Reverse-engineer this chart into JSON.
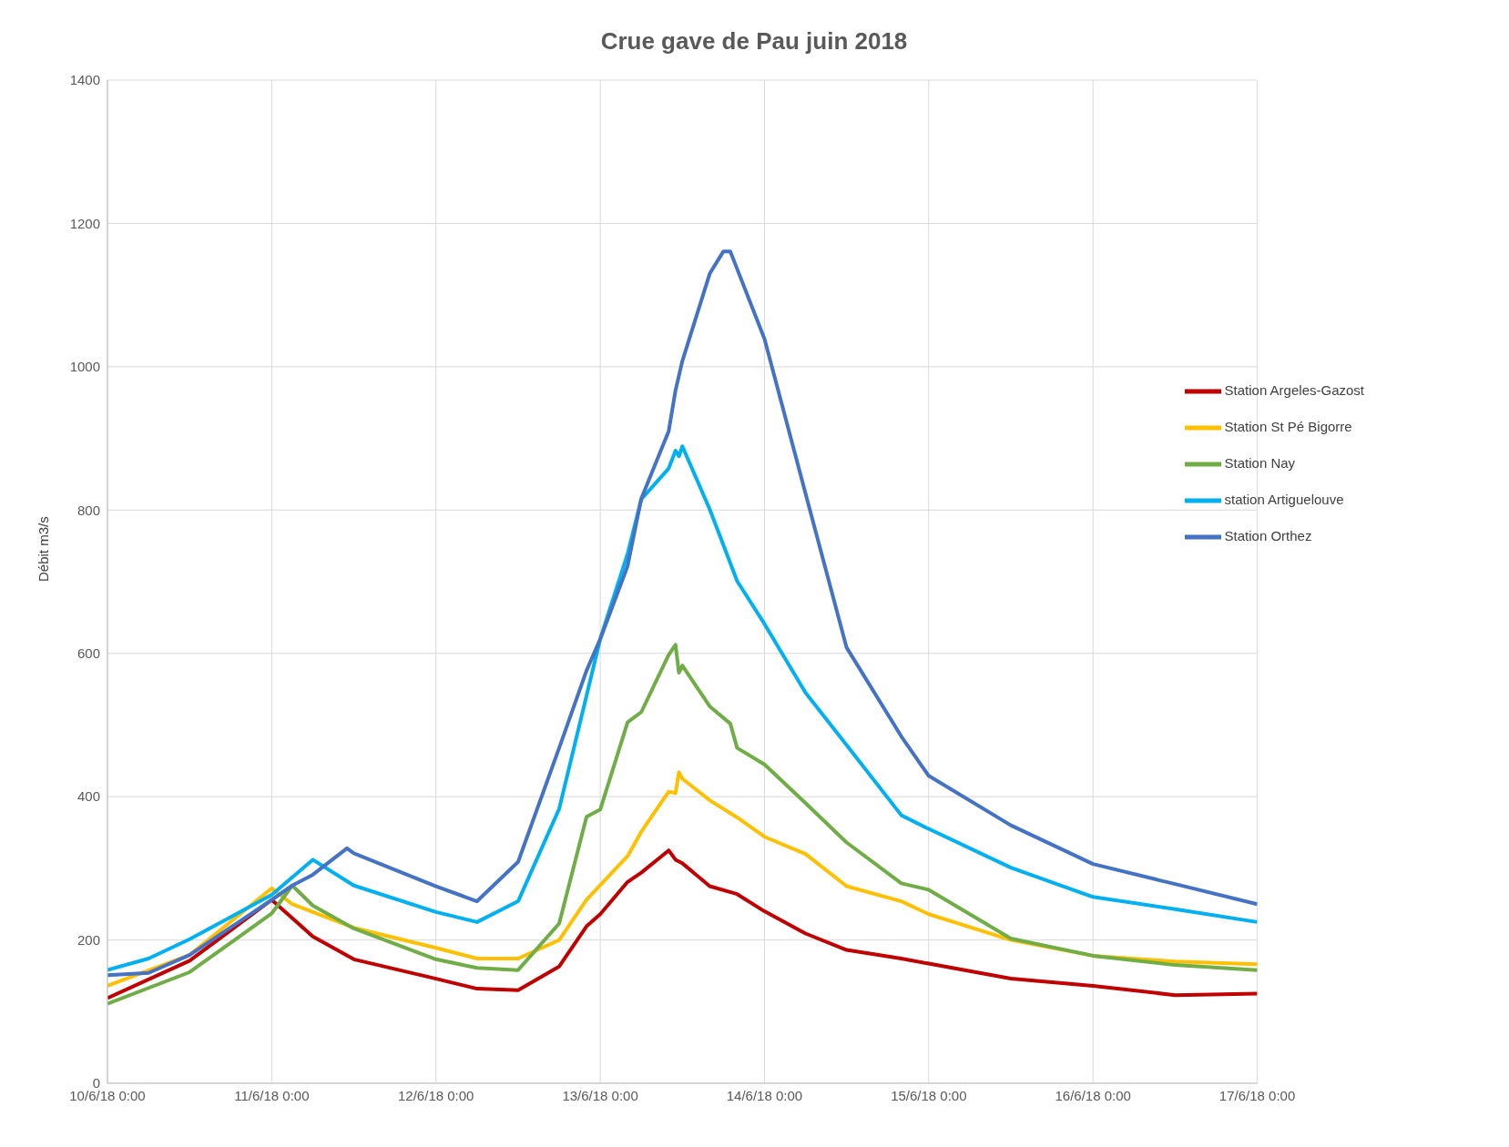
{
  "chart_data": {
    "type": "line",
    "title": "Crue gave de Pau juin 2018",
    "ylabel": "Débit m3/s",
    "xlim": [
      "2018-06-10T00:00",
      "2018-06-17T00:00"
    ],
    "xticks": [
      {
        "value": "2018-06-10T00:00",
        "label": "10/6/18 0:00"
      },
      {
        "value": "2018-06-11T00:00",
        "label": "11/6/18 0:00"
      },
      {
        "value": "2018-06-12T00:00",
        "label": "12/6/18 0:00"
      },
      {
        "value": "2018-06-13T00:00",
        "label": "13/6/18 0:00"
      },
      {
        "value": "2018-06-14T00:00",
        "label": "14/6/18 0:00"
      },
      {
        "value": "2018-06-15T00:00",
        "label": "15/6/18 0:00"
      },
      {
        "value": "2018-06-16T00:00",
        "label": "16/6/18 0:00"
      },
      {
        "value": "2018-06-17T00:00",
        "label": "17/6/18 0:00"
      }
    ],
    "ylim": [
      0,
      1400
    ],
    "yticks": [
      0,
      200,
      400,
      600,
      800,
      1000,
      1200,
      1400
    ],
    "grid": true,
    "legend": "right",
    "marker": "none",
    "line_style": "solid",
    "series": [
      {
        "name": "Station Argeles-Gazost",
        "color": "#c00000",
        "x": [
          "2018-06-10T00:00",
          "2018-06-10T12:00",
          "2018-06-11T00:00",
          "2018-06-11T06:00",
          "2018-06-11T12:00",
          "2018-06-12T00:00",
          "2018-06-12T06:00",
          "2018-06-12T12:00",
          "2018-06-12T18:00",
          "2018-06-12T22:00",
          "2018-06-13T00:00",
          "2018-06-13T04:00",
          "2018-06-13T06:00",
          "2018-06-13T10:00",
          "2018-06-13T11:00",
          "2018-06-13T12:00",
          "2018-06-13T16:00",
          "2018-06-13T20:00",
          "2018-06-14T00:00",
          "2018-06-14T06:00",
          "2018-06-14T12:00",
          "2018-06-14T20:00",
          "2018-06-15T00:00",
          "2018-06-15T12:00",
          "2018-06-16T00:00",
          "2018-06-16T12:00",
          "2018-06-17T00:00"
        ],
        "values": [
          119,
          171,
          256,
          205,
          173,
          146,
          132,
          130,
          163,
          219,
          236,
          281,
          294,
          325,
          312,
          307,
          275,
          264,
          240,
          209,
          186,
          174,
          167,
          146,
          136,
          123,
          125
        ]
      },
      {
        "name": "Station St Pé Bigorre",
        "color": "#ffc000",
        "x": [
          "2018-06-10T00:00",
          "2018-06-10T12:00",
          "2018-06-11T00:00",
          "2018-06-11T03:00",
          "2018-06-11T12:00",
          "2018-06-12T00:00",
          "2018-06-12T06:00",
          "2018-06-12T12:00",
          "2018-06-12T18:00",
          "2018-06-12T22:00",
          "2018-06-13T04:00",
          "2018-06-13T06:00",
          "2018-06-13T10:00",
          "2018-06-13T11:00",
          "2018-06-13T11:30",
          "2018-06-13T12:00",
          "2018-06-13T16:00",
          "2018-06-13T20:00",
          "2018-06-14T00:00",
          "2018-06-14T06:00",
          "2018-06-14T12:00",
          "2018-06-14T20:00",
          "2018-06-15T00:00",
          "2018-06-15T12:00",
          "2018-06-16T00:00",
          "2018-06-16T12:00",
          "2018-06-17T00:00"
        ],
        "values": [
          136,
          179,
          272,
          250,
          217,
          189,
          174,
          174,
          200,
          256,
          317,
          351,
          407,
          405,
          434,
          425,
          395,
          371,
          344,
          320,
          275,
          254,
          236,
          200,
          178,
          170,
          166
        ]
      },
      {
        "name": "Station Nay",
        "color": "#70ad47",
        "x": [
          "2018-06-10T00:00",
          "2018-06-10T12:00",
          "2018-06-11T00:00",
          "2018-06-11T03:00",
          "2018-06-11T06:00",
          "2018-06-11T12:00",
          "2018-06-12T00:00",
          "2018-06-12T06:00",
          "2018-06-12T12:00",
          "2018-06-12T18:00",
          "2018-06-12T22:00",
          "2018-06-13T00:00",
          "2018-06-13T04:00",
          "2018-06-13T06:00",
          "2018-06-13T10:00",
          "2018-06-13T11:00",
          "2018-06-13T11:30",
          "2018-06-13T12:00",
          "2018-06-13T16:00",
          "2018-06-13T19:00",
          "2018-06-13T20:00",
          "2018-06-14T00:00",
          "2018-06-14T06:00",
          "2018-06-14T12:00",
          "2018-06-14T20:00",
          "2018-06-15T00:00",
          "2018-06-15T12:00",
          "2018-06-16T00:00",
          "2018-06-16T12:00",
          "2018-06-17T00:00"
        ],
        "values": [
          111,
          155,
          237,
          276,
          248,
          216,
          173,
          161,
          158,
          223,
          372,
          382,
          504,
          518,
          598,
          612,
          573,
          583,
          526,
          502,
          468,
          445,
          391,
          336,
          279,
          270,
          202,
          178,
          165,
          158
        ]
      },
      {
        "name": "station Artiguelouve",
        "color": "#00b0f0",
        "x": [
          "2018-06-10T00:00",
          "2018-06-10T06:00",
          "2018-06-10T12:00",
          "2018-06-11T00:00",
          "2018-06-11T06:00",
          "2018-06-11T12:00",
          "2018-06-12T00:00",
          "2018-06-12T06:00",
          "2018-06-12T12:00",
          "2018-06-12T18:00",
          "2018-06-13T00:00",
          "2018-06-13T04:00",
          "2018-06-13T06:00",
          "2018-06-13T10:00",
          "2018-06-13T11:00",
          "2018-06-13T11:30",
          "2018-06-13T12:00",
          "2018-06-13T16:00",
          "2018-06-13T20:00",
          "2018-06-14T00:00",
          "2018-06-14T06:00",
          "2018-06-14T12:00",
          "2018-06-14T20:00",
          "2018-06-15T00:00",
          "2018-06-15T12:00",
          "2018-06-16T00:00",
          "2018-06-16T12:00",
          "2018-06-17T00:00"
        ],
        "values": [
          158,
          174,
          201,
          263,
          312,
          276,
          239,
          225,
          254,
          383,
          620,
          739,
          815,
          858,
          883,
          875,
          889,
          801,
          701,
          641,
          545,
          472,
          374,
          355,
          301,
          260,
          243,
          225
        ]
      },
      {
        "name": "Station Orthez",
        "color": "#4472c4",
        "x": [
          "2018-06-10T00:00",
          "2018-06-10T06:00",
          "2018-06-10T12:00",
          "2018-06-11T00:00",
          "2018-06-11T03:00",
          "2018-06-11T06:00",
          "2018-06-11T11:00",
          "2018-06-11T12:00",
          "2018-06-12T00:00",
          "2018-06-12T06:00",
          "2018-06-12T12:00",
          "2018-06-12T18:00",
          "2018-06-12T22:00",
          "2018-06-13T00:00",
          "2018-06-13T04:00",
          "2018-06-13T06:00",
          "2018-06-13T10:00",
          "2018-06-13T11:00",
          "2018-06-13T12:00",
          "2018-06-13T16:00",
          "2018-06-13T18:00",
          "2018-06-13T19:00",
          "2018-06-14T00:00",
          "2018-06-14T06:00",
          "2018-06-14T12:00",
          "2018-06-14T20:00",
          "2018-06-15T00:00",
          "2018-06-15T12:00",
          "2018-06-16T00:00",
          "2018-06-16T12:00",
          "2018-06-17T00:00"
        ],
        "values": [
          151,
          154,
          179,
          256,
          276,
          291,
          328,
          321,
          275,
          254,
          309,
          468,
          576,
          620,
          722,
          816,
          910,
          967,
          1008,
          1130,
          1161,
          1161,
          1039,
          823,
          608,
          484,
          429,
          360,
          306,
          278,
          250
        ]
      }
    ]
  }
}
